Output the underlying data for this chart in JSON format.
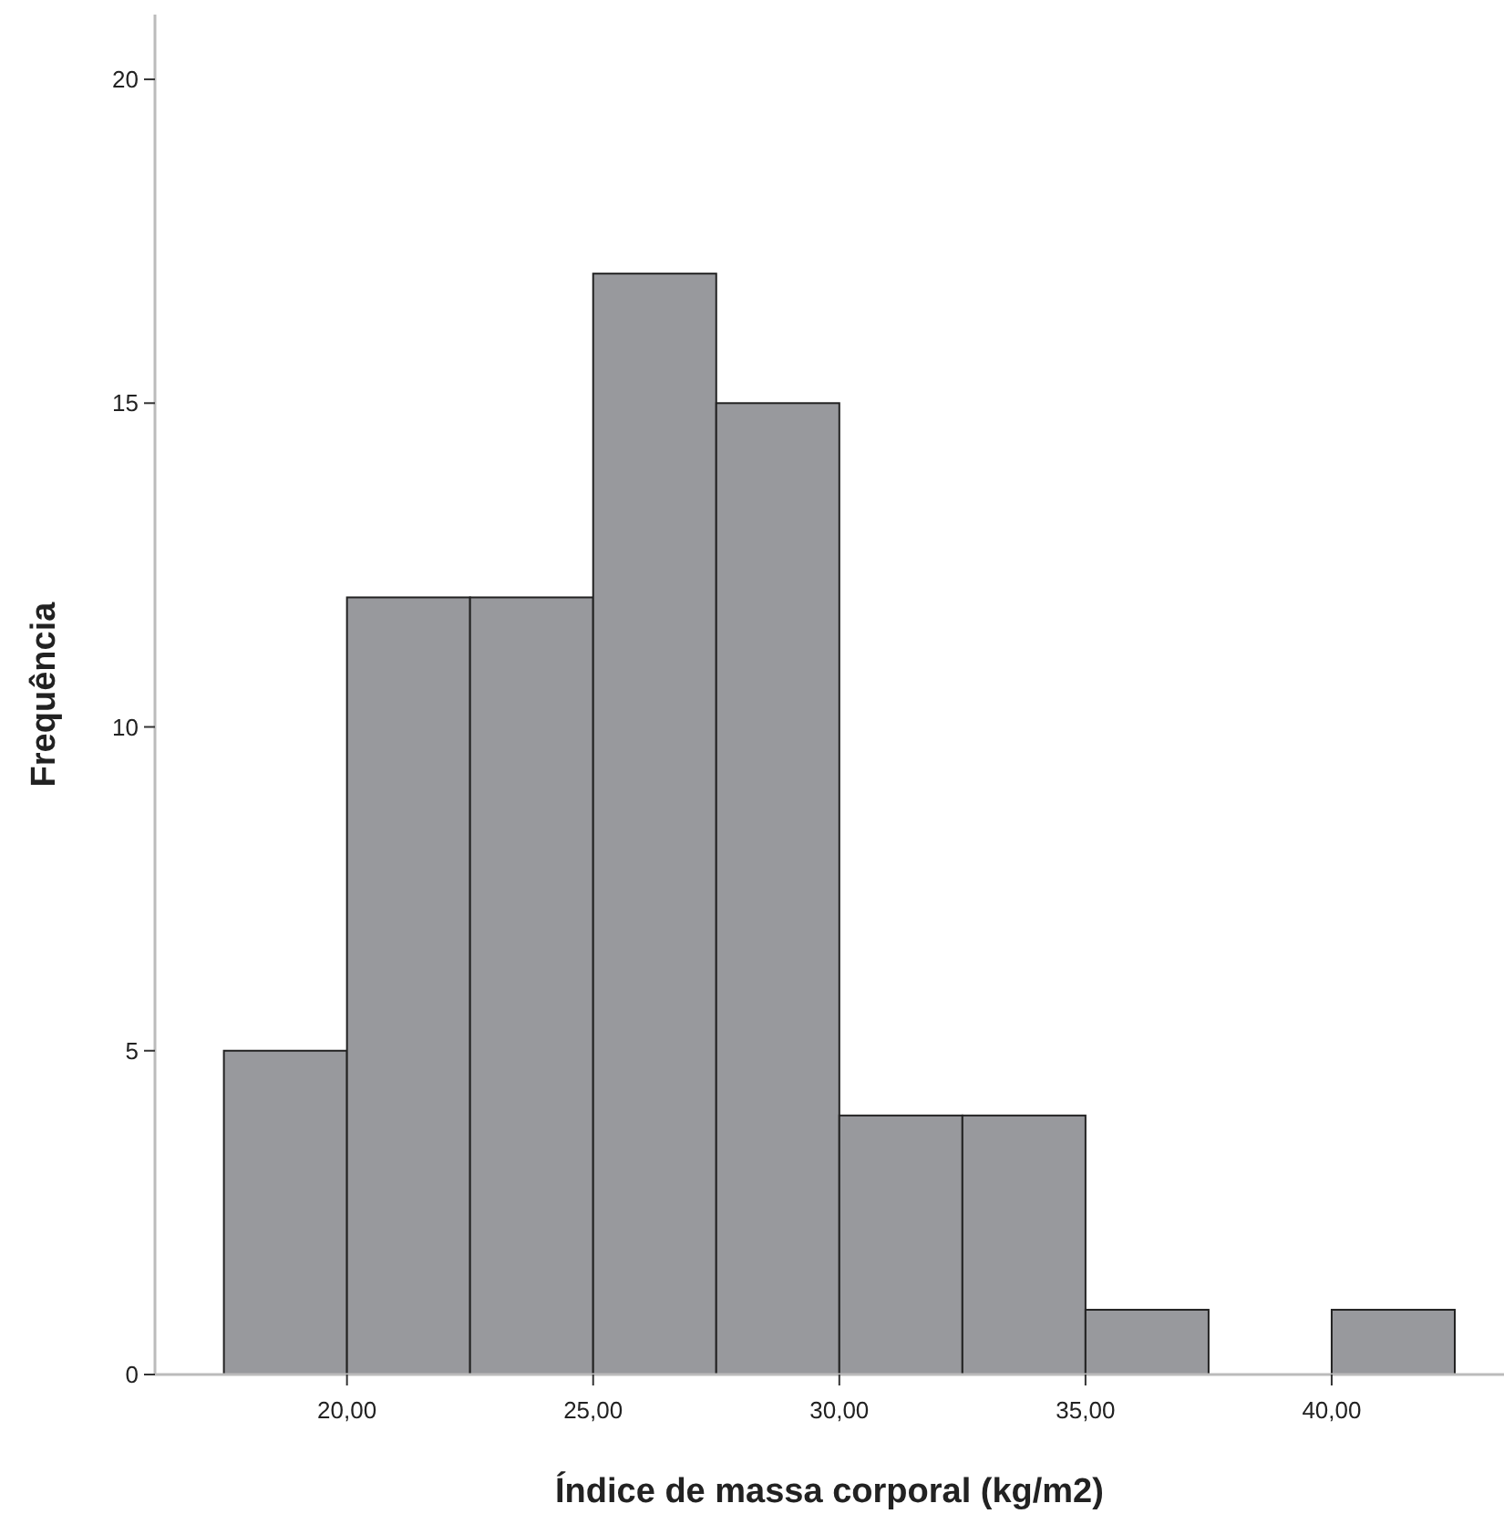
{
  "chart_data": {
    "type": "histogram",
    "xlabel": "Índice de massa corporal (kg/m2)",
    "ylabel": "Frequência",
    "bins": [
      17.5,
      20,
      22.5,
      25,
      27.5,
      30,
      32.5,
      35,
      37.5,
      40,
      42.5
    ],
    "values": [
      5,
      12,
      12,
      17,
      15,
      4,
      4,
      1,
      0,
      1
    ],
    "color": "#98999d",
    "xlim": [
      16.1,
      43.5
    ],
    "ylim": [
      0,
      21
    ],
    "xticks": [
      {
        "value": 20,
        "label": "20,00"
      },
      {
        "value": 25,
        "label": "25,00"
      },
      {
        "value": 30,
        "label": "30,00"
      },
      {
        "value": 35,
        "label": "35,00"
      },
      {
        "value": 40,
        "label": "40,00"
      }
    ],
    "yticks": [
      0,
      5,
      10,
      15,
      20
    ],
    "grid": false
  }
}
